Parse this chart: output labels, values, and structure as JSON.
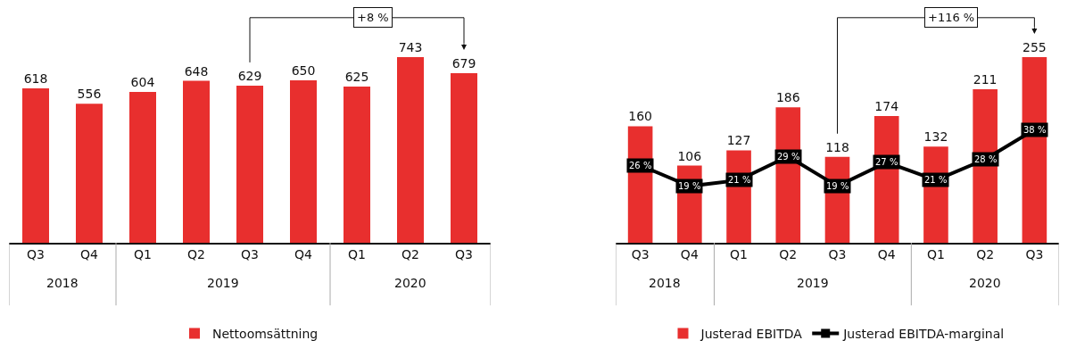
{
  "chart_data": [
    {
      "type": "bar",
      "categories": [
        "Q3",
        "Q4",
        "Q1",
        "Q2",
        "Q3",
        "Q4",
        "Q1",
        "Q2",
        "Q3"
      ],
      "series": [
        {
          "name": "Nettoomsättning",
          "color": "#e82f2e",
          "values": [
            618,
            556,
            604,
            648,
            629,
            650,
            625,
            743,
            679
          ]
        }
      ],
      "data_labels": true,
      "tick_labels": "x",
      "grid": false,
      "legend": "bottom",
      "annotations": [
        "2018",
        "2019",
        "2020",
        "+8 %"
      ]
    },
    {
      "type": "bar",
      "categories": [
        "Q3",
        "Q4",
        "Q1",
        "Q2",
        "Q3",
        "Q4",
        "Q1",
        "Q2",
        "Q3"
      ],
      "series": [
        {
          "name": "Justerad EBITDA",
          "color": "#e82f2e",
          "values": [
            160,
            106,
            127,
            186,
            118,
            174,
            132,
            211,
            255
          ]
        },
        {
          "name": "Justerad EBITDA-marginal",
          "type": "line",
          "axis": "y2",
          "color": "#000000",
          "marker": "square",
          "values": [
            26,
            19,
            21,
            29,
            19,
            27,
            21,
            28,
            38
          ],
          "value_labels": [
            "26 %",
            "19 %",
            "21 %",
            "29 %",
            "19 %",
            "27 %",
            "21 %",
            "28 %",
            "38 %"
          ]
        }
      ],
      "data_labels": true,
      "tick_labels": "x",
      "grid": false,
      "legend": "bottom",
      "annotations": [
        "2018",
        "2019",
        "2020",
        "+116 %"
      ]
    }
  ]
}
